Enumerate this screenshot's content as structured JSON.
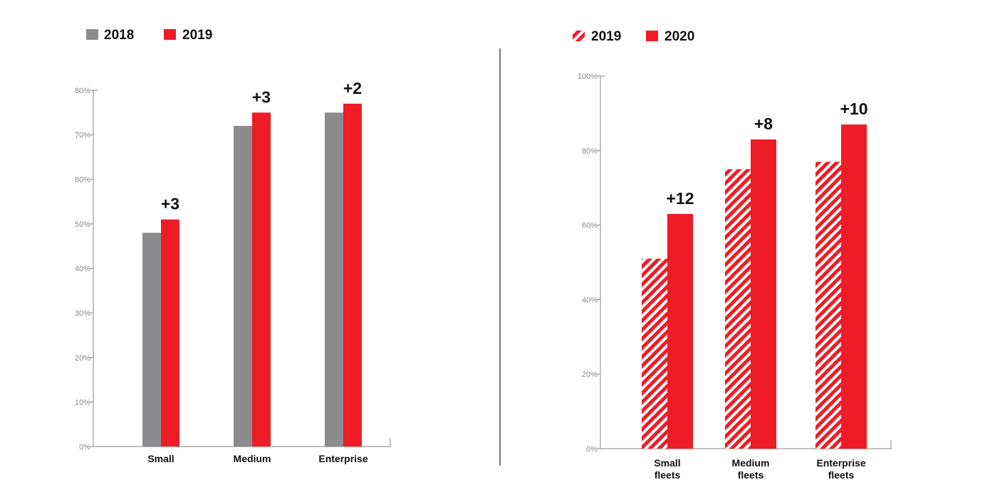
{
  "chart_data": [
    {
      "type": "bar",
      "categories": [
        "Small",
        "Medium",
        "Enterprise"
      ],
      "series": [
        {
          "name": "2018",
          "values": [
            48,
            72,
            75
          ],
          "color": "#8c8c8f",
          "pattern": "solid"
        },
        {
          "name": "2019",
          "values": [
            51,
            75,
            77
          ],
          "color": "#ee1c25",
          "pattern": "solid"
        }
      ],
      "annotations": [
        "+3",
        "+3",
        "+2"
      ],
      "ylim": [
        0,
        80
      ],
      "yticks": [
        0,
        10,
        20,
        30,
        40,
        50,
        60,
        70,
        80
      ],
      "ytick_labels": [
        "0%",
        "10%",
        "20%",
        "30%",
        "40%",
        "50%",
        "60%",
        "70%",
        "80%"
      ],
      "title": "",
      "xlabel": "",
      "ylabel": "",
      "grid": false,
      "legend": "top-left"
    },
    {
      "type": "bar",
      "categories": [
        "Small fleets",
        "Medium fleets",
        "Enterprise fleets"
      ],
      "series": [
        {
          "name": "2019",
          "values": [
            51,
            75,
            77
          ],
          "color": "#ee1c25",
          "pattern": "hatched"
        },
        {
          "name": "2020",
          "values": [
            63,
            83,
            87
          ],
          "color": "#ee1c25",
          "pattern": "solid"
        }
      ],
      "annotations": [
        "+12",
        "+8",
        "+10"
      ],
      "ylim": [
        0,
        100
      ],
      "yticks": [
        0,
        20,
        40,
        60,
        80,
        100
      ],
      "ytick_labels": [
        "0%",
        "20%",
        "40%",
        "60%",
        "80%",
        "100%"
      ],
      "title": "",
      "xlabel": "",
      "ylabel": "",
      "grid": false,
      "legend": "top-left"
    }
  ]
}
